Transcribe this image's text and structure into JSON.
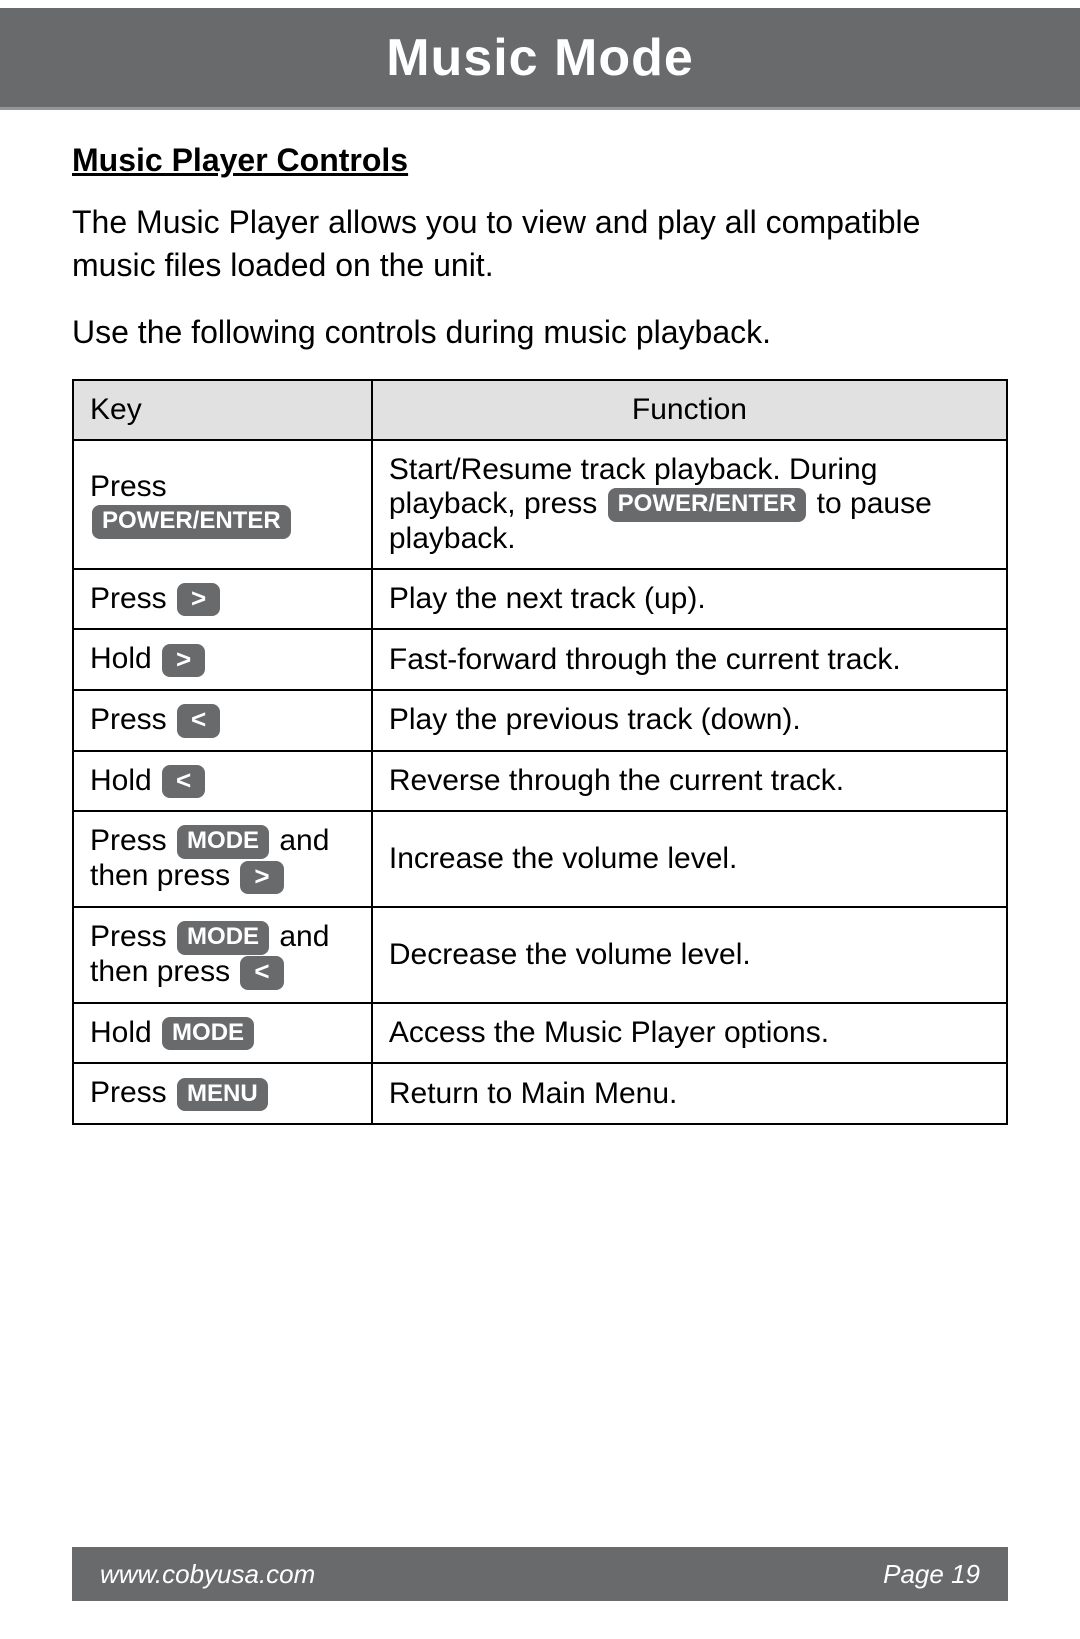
{
  "colors": {
    "band_bg": "#696a6c",
    "band_text": "#ffffff",
    "header_border": "#969696",
    "page_bg": "#ffffff",
    "text": "#000000",
    "table_header_bg": "#e1e1e2",
    "table_border": "#000000",
    "key_btn_bg": "#696a6c",
    "key_btn_text": "#ffffff"
  },
  "typography": {
    "header_title_size": 52,
    "section_title_size": 32,
    "body_size": 32,
    "table_cell_size": 30,
    "key_btn_size": 24,
    "footer_size": 26
  },
  "header": {
    "title": "Music Mode"
  },
  "section": {
    "title": "Music Player Controls",
    "intro1": "The Music Player allows you to view and play all compatible music files loaded on the unit.",
    "intro2": "Use the following controls during music playback."
  },
  "table": {
    "columns": [
      "Key",
      "Function"
    ],
    "rows": [
      {
        "key_parts": [
          {
            "type": "text",
            "value": "Press "
          },
          {
            "type": "btn",
            "value": "POWER/ENTER"
          }
        ],
        "func_parts": [
          {
            "type": "text",
            "value": "Start/Resume track playback. During playback, press "
          },
          {
            "type": "btn",
            "value": "POWER/ENTER"
          },
          {
            "type": "text",
            "value": " to pause playback."
          }
        ]
      },
      {
        "key_parts": [
          {
            "type": "text",
            "value": "Press "
          },
          {
            "type": "btn_sym",
            "value": ">"
          }
        ],
        "func_parts": [
          {
            "type": "text",
            "value": "Play the next track (up)."
          }
        ]
      },
      {
        "key_parts": [
          {
            "type": "text",
            "value": "Hold "
          },
          {
            "type": "btn_sym",
            "value": ">"
          }
        ],
        "func_parts": [
          {
            "type": "text",
            "value": "Fast-forward through the current track."
          }
        ]
      },
      {
        "key_parts": [
          {
            "type": "text",
            "value": "Press "
          },
          {
            "type": "btn_sym",
            "value": "<"
          }
        ],
        "func_parts": [
          {
            "type": "text",
            "value": "Play the previous track (down)."
          }
        ]
      },
      {
        "key_parts": [
          {
            "type": "text",
            "value": "Hold "
          },
          {
            "type": "btn_sym",
            "value": "<"
          }
        ],
        "func_parts": [
          {
            "type": "text",
            "value": "Reverse through the current track."
          }
        ]
      },
      {
        "key_parts": [
          {
            "type": "text",
            "value": "Press "
          },
          {
            "type": "btn",
            "value": "MODE"
          },
          {
            "type": "text",
            "value": " and then press "
          },
          {
            "type": "btn_sym",
            "value": ">"
          }
        ],
        "func_parts": [
          {
            "type": "text",
            "value": "Increase the volume level."
          }
        ]
      },
      {
        "key_parts": [
          {
            "type": "text",
            "value": "Press "
          },
          {
            "type": "btn",
            "value": "MODE"
          },
          {
            "type": "text",
            "value": " and then press "
          },
          {
            "type": "btn_sym",
            "value": "<"
          }
        ],
        "func_parts": [
          {
            "type": "text",
            "value": "Decrease the volume level."
          }
        ]
      },
      {
        "key_parts": [
          {
            "type": "text",
            "value": "Hold "
          },
          {
            "type": "btn",
            "value": "MODE"
          }
        ],
        "func_parts": [
          {
            "type": "text",
            "value": "Access the Music Player options."
          }
        ]
      },
      {
        "key_parts": [
          {
            "type": "text",
            "value": "Press "
          },
          {
            "type": "btn",
            "value": "MENU"
          }
        ],
        "func_parts": [
          {
            "type": "text",
            "value": "Return to Main Menu."
          }
        ]
      }
    ]
  },
  "footer": {
    "url": "www.cobyusa.com",
    "page": "Page 19"
  }
}
